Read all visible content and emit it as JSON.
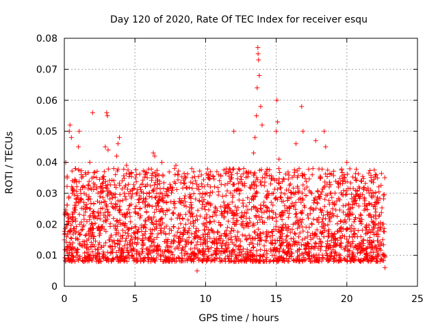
{
  "chart_data": {
    "type": "scatter",
    "title": "Day 120 of 2020, Rate Of TEC Index for receiver esqu",
    "xlabel": "GPS time / hours",
    "ylabel": "ROTI / TECUs",
    "xlim": [
      0,
      25
    ],
    "ylim": [
      0,
      0.08
    ],
    "xticks": [
      0,
      5,
      10,
      15,
      20,
      25
    ],
    "xtick_labels": [
      "0",
      "5",
      "10",
      "15",
      "20",
      "25"
    ],
    "yticks": [
      0,
      0.01,
      0.02,
      0.03,
      0.04,
      0.05,
      0.06,
      0.07,
      0.08
    ],
    "ytick_labels": [
      "0",
      "0.01",
      "0.02",
      "0.03",
      "0.04",
      "0.05",
      "0.06",
      "0.07",
      "0.08"
    ],
    "grid": true,
    "marker": "+",
    "marker_color": "#ff0000",
    "data_range": {
      "x_min": 0.0,
      "x_max": 22.7
    },
    "series": [
      {
        "name": "ROTI",
        "points": [
          [
            0.0,
            0.015
          ],
          [
            0.1,
            0.04
          ],
          [
            0.15,
            0.012
          ],
          [
            0.2,
            0.035
          ],
          [
            0.25,
            0.009
          ],
          [
            0.3,
            0.022
          ],
          [
            0.35,
            0.05
          ],
          [
            0.4,
            0.052
          ],
          [
            0.45,
            0.018
          ],
          [
            0.5,
            0.048
          ],
          [
            0.55,
            0.03
          ],
          [
            0.6,
            0.014
          ],
          [
            0.7,
            0.025
          ],
          [
            0.8,
            0.038
          ],
          [
            0.9,
            0.011
          ],
          [
            1.0,
            0.045
          ],
          [
            1.05,
            0.05
          ],
          [
            1.1,
            0.02
          ],
          [
            1.2,
            0.036
          ],
          [
            1.3,
            0.013
          ],
          [
            1.4,
            0.03
          ],
          [
            1.5,
            0.024
          ],
          [
            1.6,
            0.009
          ],
          [
            1.7,
            0.028
          ],
          [
            1.8,
            0.04
          ],
          [
            1.9,
            0.016
          ],
          [
            2.0,
            0.056
          ],
          [
            2.1,
            0.022
          ],
          [
            2.2,
            0.01
          ],
          [
            2.3,
            0.032
          ],
          [
            2.4,
            0.019
          ],
          [
            2.5,
            0.027
          ],
          [
            2.6,
            0.008
          ],
          [
            2.7,
            0.035
          ],
          [
            2.8,
            0.021
          ],
          [
            2.9,
            0.045
          ],
          [
            3.0,
            0.056
          ],
          [
            3.05,
            0.055
          ],
          [
            3.1,
            0.044
          ],
          [
            3.2,
            0.015
          ],
          [
            3.3,
            0.03
          ],
          [
            3.4,
            0.012
          ],
          [
            3.5,
            0.038
          ],
          [
            3.6,
            0.025
          ],
          [
            3.7,
            0.042
          ],
          [
            3.8,
            0.046
          ],
          [
            3.9,
            0.048
          ],
          [
            4.0,
            0.02
          ],
          [
            4.1,
            0.034
          ],
          [
            4.2,
            0.011
          ],
          [
            4.3,
            0.029
          ],
          [
            4.4,
            0.039
          ],
          [
            4.5,
            0.017
          ],
          [
            4.6,
            0.026
          ],
          [
            4.7,
            0.013
          ],
          [
            4.8,
            0.031
          ],
          [
            4.9,
            0.009
          ],
          [
            5.0,
            0.024
          ],
          [
            5.1,
            0.036
          ],
          [
            5.2,
            0.014
          ],
          [
            5.3,
            0.028
          ],
          [
            5.4,
            0.008
          ],
          [
            5.5,
            0.033
          ],
          [
            5.6,
            0.019
          ],
          [
            5.7,
            0.037
          ],
          [
            5.8,
            0.012
          ],
          [
            5.9,
            0.026
          ],
          [
            6.0,
            0.03
          ],
          [
            6.1,
            0.016
          ],
          [
            6.2,
            0.035
          ],
          [
            6.3,
            0.043
          ],
          [
            6.4,
            0.042
          ],
          [
            6.5,
            0.021
          ],
          [
            6.6,
            0.013
          ],
          [
            6.7,
            0.029
          ],
          [
            6.8,
            0.018
          ],
          [
            6.9,
            0.04
          ],
          [
            7.0,
            0.024
          ],
          [
            7.2,
            0.015
          ],
          [
            7.4,
            0.031
          ],
          [
            7.6,
            0.011
          ],
          [
            7.8,
            0.038
          ],
          [
            7.9,
            0.039
          ],
          [
            8.0,
            0.022
          ],
          [
            8.2,
            0.027
          ],
          [
            8.4,
            0.012
          ],
          [
            8.6,
            0.02
          ],
          [
            8.8,
            0.014
          ],
          [
            9.0,
            0.025
          ],
          [
            9.2,
            0.009
          ],
          [
            9.4,
            0.005
          ],
          [
            9.5,
            0.018
          ],
          [
            9.6,
            0.011
          ],
          [
            9.8,
            0.03
          ],
          [
            10.0,
            0.014
          ],
          [
            10.2,
            0.035
          ],
          [
            10.4,
            0.01
          ],
          [
            10.6,
            0.024
          ],
          [
            10.8,
            0.037
          ],
          [
            11.0,
            0.016
          ],
          [
            11.2,
            0.029
          ],
          [
            11.4,
            0.008
          ],
          [
            11.6,
            0.021
          ],
          [
            11.8,
            0.035
          ],
          [
            12.0,
            0.05
          ],
          [
            12.1,
            0.02
          ],
          [
            12.3,
            0.012
          ],
          [
            12.5,
            0.031
          ],
          [
            12.7,
            0.038
          ],
          [
            12.9,
            0.015
          ],
          [
            13.1,
            0.027
          ],
          [
            13.3,
            0.01
          ],
          [
            13.4,
            0.043
          ],
          [
            13.5,
            0.048
          ],
          [
            13.6,
            0.055
          ],
          [
            13.65,
            0.064
          ],
          [
            13.7,
            0.077
          ],
          [
            13.72,
            0.075
          ],
          [
            13.75,
            0.073
          ],
          [
            13.8,
            0.068
          ],
          [
            13.9,
            0.058
          ],
          [
            14.0,
            0.052
          ],
          [
            14.2,
            0.035
          ],
          [
            14.4,
            0.022
          ],
          [
            14.6,
            0.012
          ],
          [
            14.8,
            0.03
          ],
          [
            15.0,
            0.05
          ],
          [
            15.05,
            0.06
          ],
          [
            15.1,
            0.053
          ],
          [
            15.2,
            0.041
          ],
          [
            15.4,
            0.018
          ],
          [
            15.6,
            0.026
          ],
          [
            15.8,
            0.011
          ],
          [
            16.0,
            0.033
          ],
          [
            16.2,
            0.02
          ],
          [
            16.4,
            0.046
          ],
          [
            16.6,
            0.028
          ],
          [
            16.8,
            0.058
          ],
          [
            16.9,
            0.05
          ],
          [
            17.0,
            0.036
          ],
          [
            17.2,
            0.014
          ],
          [
            17.4,
            0.025
          ],
          [
            17.6,
            0.038
          ],
          [
            17.8,
            0.047
          ],
          [
            18.0,
            0.029
          ],
          [
            18.2,
            0.017
          ],
          [
            18.4,
            0.05
          ],
          [
            18.5,
            0.045
          ],
          [
            18.6,
            0.033
          ],
          [
            18.8,
            0.021
          ],
          [
            19.0,
            0.027
          ],
          [
            19.2,
            0.013
          ],
          [
            19.4,
            0.032
          ],
          [
            19.6,
            0.019
          ],
          [
            19.8,
            0.036
          ],
          [
            20.0,
            0.04
          ],
          [
            20.2,
            0.024
          ],
          [
            20.4,
            0.011
          ],
          [
            20.6,
            0.029
          ],
          [
            20.8,
            0.018
          ],
          [
            21.0,
            0.034
          ],
          [
            21.2,
            0.015
          ],
          [
            21.4,
            0.031
          ],
          [
            21.6,
            0.023
          ],
          [
            21.8,
            0.012
          ],
          [
            22.0,
            0.027
          ],
          [
            22.2,
            0.016
          ],
          [
            22.4,
            0.019
          ],
          [
            22.6,
            0.01
          ],
          [
            22.7,
            0.006
          ]
        ]
      }
    ]
  }
}
